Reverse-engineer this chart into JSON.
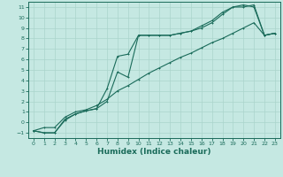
{
  "xlabel": "Humidex (Indice chaleur)",
  "xlim": [
    -0.5,
    23.5
  ],
  "ylim": [
    -1.5,
    11.5
  ],
  "xticks": [
    0,
    1,
    2,
    3,
    4,
    5,
    6,
    7,
    8,
    9,
    10,
    11,
    12,
    13,
    14,
    15,
    16,
    17,
    18,
    19,
    20,
    21,
    22,
    23
  ],
  "yticks": [
    -1,
    0,
    1,
    2,
    3,
    4,
    5,
    6,
    7,
    8,
    9,
    10,
    11
  ],
  "line_color": "#1a6b5a",
  "bg_color": "#c5e8e2",
  "grid_color": "#aad4cc",
  "line1_x": [
    0,
    1,
    2,
    3,
    4,
    5,
    6,
    7,
    8,
    9,
    10,
    11,
    12,
    13,
    14,
    15,
    16,
    17,
    18,
    19,
    20,
    21,
    22,
    23
  ],
  "line1_y": [
    -0.8,
    -1.0,
    -1.0,
    0.3,
    0.8,
    1.1,
    1.3,
    3.2,
    6.3,
    6.5,
    8.3,
    8.3,
    8.3,
    8.3,
    8.5,
    8.7,
    9.0,
    9.5,
    10.3,
    11.0,
    11.0,
    11.2,
    8.3,
    8.5
  ],
  "line2_x": [
    0,
    1,
    2,
    3,
    4,
    5,
    6,
    7,
    8,
    9,
    10,
    11,
    12,
    13,
    14,
    15,
    16,
    17,
    18,
    19,
    20,
    21,
    22,
    23
  ],
  "line2_y": [
    -0.8,
    -1.0,
    -1.0,
    0.2,
    0.8,
    1.1,
    1.3,
    2.0,
    4.8,
    4.3,
    8.3,
    8.3,
    8.3,
    8.3,
    8.5,
    8.7,
    9.2,
    9.7,
    10.5,
    11.0,
    11.2,
    11.0,
    8.3,
    8.5
  ],
  "line3_x": [
    0,
    1,
    2,
    3,
    4,
    5,
    6,
    7,
    8,
    9,
    10,
    11,
    12,
    13,
    14,
    15,
    16,
    17,
    18,
    19,
    20,
    21,
    22,
    23
  ],
  "line3_y": [
    -0.8,
    -0.5,
    -0.5,
    0.5,
    1.0,
    1.2,
    1.6,
    2.2,
    3.0,
    3.5,
    4.1,
    4.7,
    5.2,
    5.7,
    6.2,
    6.6,
    7.1,
    7.6,
    8.0,
    8.5,
    9.0,
    9.5,
    8.3,
    8.5
  ]
}
